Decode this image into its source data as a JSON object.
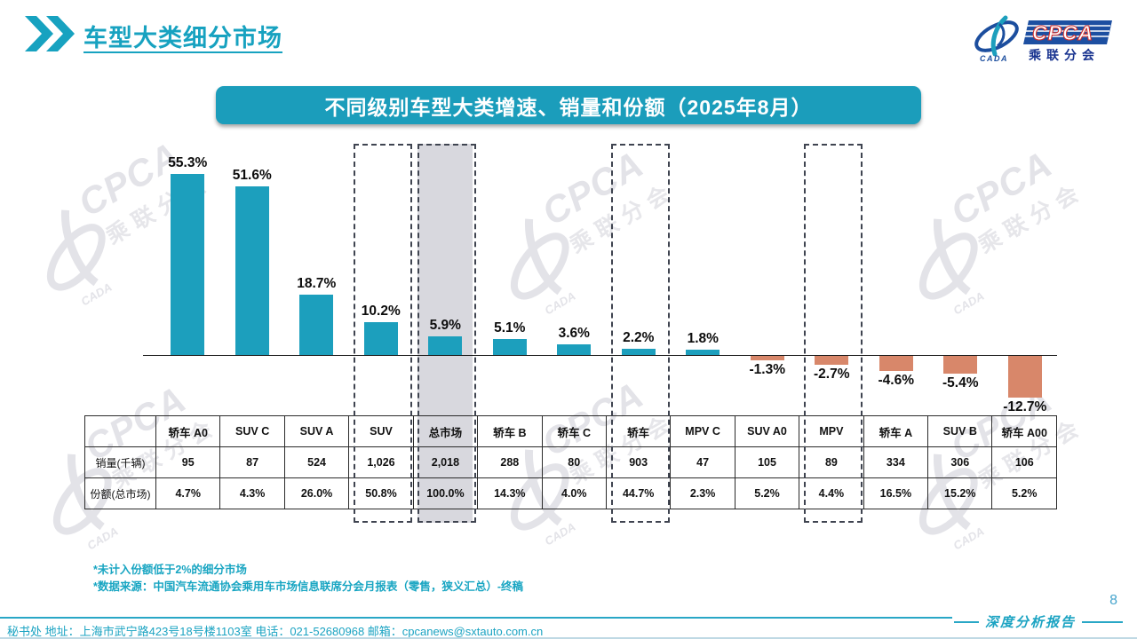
{
  "header": {
    "title": "车型大类细分市场"
  },
  "logo": {
    "name": "CPCA",
    "subtitle": "乘联分会",
    "small": "CADA"
  },
  "banner": {
    "title": "不同级别车型大类增速、销量和份额（2025年8月）"
  },
  "chart_data": {
    "type": "bar",
    "title": "不同级别车型大类增速、销量和份额（2025年8月）",
    "categories": [
      "轿车 A0",
      "SUV C",
      "SUV A",
      "SUV",
      "总市场",
      "轿车 B",
      "轿车 C",
      "轿车",
      "MPV C",
      "SUV A0",
      "MPV",
      "轿车 A",
      "SUV B",
      "轿车 A00"
    ],
    "series": [
      {
        "name": "增速",
        "unit": "%",
        "values": [
          55.3,
          51.6,
          18.7,
          10.2,
          5.9,
          5.1,
          3.6,
          2.2,
          1.8,
          -1.3,
          -2.7,
          -4.6,
          -5.4,
          -12.7
        ]
      }
    ],
    "table_rows": [
      {
        "label": "销量(千辆)",
        "values": [
          "95",
          "87",
          "524",
          "1,026",
          "2,018",
          "288",
          "80",
          "903",
          "47",
          "105",
          "89",
          "334",
          "306",
          "106"
        ]
      },
      {
        "label": "份额(总市场)",
        "values": [
          "4.7%",
          "4.3%",
          "26.0%",
          "50.8%",
          "100.0%",
          "14.3%",
          "4.0%",
          "44.7%",
          "2.3%",
          "5.2%",
          "4.4%",
          "16.5%",
          "15.2%",
          "5.2%"
        ]
      }
    ],
    "highlight": {
      "dashed_columns": [
        3,
        4,
        7,
        10
      ],
      "gray_column": 4
    },
    "colors": {
      "positive": "#1C9FBD",
      "negative": "#D8876A",
      "gray": "#D8D8DE"
    },
    "ylim": [
      -15,
      60
    ],
    "grid": false,
    "legend_position": "none",
    "xlabel": "",
    "ylabel": ""
  },
  "footnotes": [
    "*未计入份额低于2%的细分市场",
    "*数据来源：中国汽车流通协会乘用车市场信息联席分会月报表（零售，狭义汇总）-终稿"
  ],
  "footer": {
    "address": "秘书处  地址：上海市武宁路423号18号楼1103室 电话：021-52680968  邮箱：cpcanews@sxtauto.com.cn",
    "report_label": "深度分析报告",
    "page_number": "8"
  },
  "watermark": {
    "line1": "CPCA",
    "line2": "乘联分会",
    "small": "CADA"
  }
}
